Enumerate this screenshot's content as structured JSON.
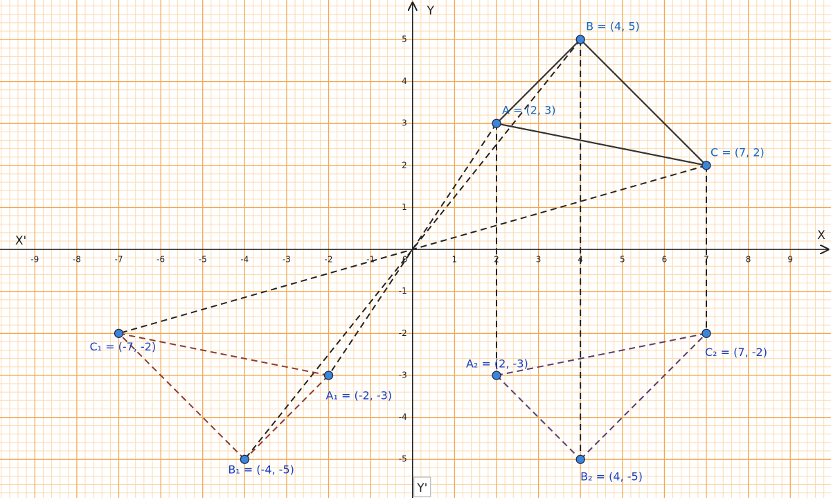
{
  "axes": {
    "x_label": "X",
    "x_neg_label": "X'",
    "y_label": "Y",
    "y_neg_label": "Y'",
    "xlim": [
      -9.83,
      9.97
    ],
    "ylim": [
      -5.92,
      5.94
    ],
    "xticks": [
      -9,
      -8,
      -7,
      -6,
      -5,
      -4,
      -3,
      -2,
      -1,
      0,
      1,
      2,
      3,
      4,
      5,
      6,
      7,
      8,
      9
    ],
    "yticks": [
      -5,
      -4,
      -3,
      -2,
      -1,
      1,
      2,
      3,
      4,
      5
    ]
  },
  "points": [
    {
      "label": "A = (2, 3)",
      "x": 2,
      "y": 3
    },
    {
      "label": "B = (4, 5)",
      "x": 4,
      "y": 5
    },
    {
      "label": "C = (7, 2)",
      "x": 7,
      "y": 2
    },
    {
      "label": "A₁ = (-2, -3)",
      "x": -2,
      "y": -3
    },
    {
      "label": "B₁ = (-4, -5)",
      "x": -4,
      "y": -5
    },
    {
      "label": "C₁ = (-7, -2)",
      "x": -7,
      "y": -2
    },
    {
      "label": "A₂ = (2, -3)",
      "x": 2,
      "y": -3
    },
    {
      "label": "B₂ = (4, -5)",
      "x": 4,
      "y": -5
    },
    {
      "label": "C₂ = (7, -2)",
      "x": 7,
      "y": -2
    }
  ]
}
